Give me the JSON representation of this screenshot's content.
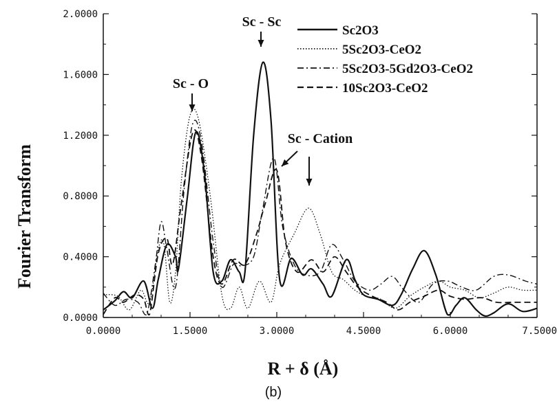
{
  "chart_data": {
    "type": "line",
    "xlabel": "R + δ  (Å)",
    "ylabel": "Fourier Transform",
    "panel_label": "(b)",
    "xlim": [
      0,
      7.5
    ],
    "ylim": [
      0,
      2
    ],
    "x_ticks": [
      "0.0000",
      "1.5000",
      "3.0000",
      "4.5000",
      "6.0000",
      "7.5000"
    ],
    "y_ticks": [
      "0.0000",
      "0.4000",
      "0.8000",
      "1.2000",
      "1.6000",
      "2.0000"
    ],
    "legend_position": "top-right",
    "annotations": [
      {
        "text": "Sc - Sc",
        "x": 2.76,
        "y": 1.68
      },
      {
        "text": "Sc - O",
        "x": 1.56,
        "y": 1.35
      },
      {
        "text": "Sc - Cation",
        "x": 2.95,
        "y": 1.05
      },
      {
        "text": "",
        "x": 3.55,
        "y": 0.88
      }
    ],
    "series": [
      {
        "name": "Sc2O3",
        "style": "solid",
        "points": [
          [
            0,
            0.05
          ],
          [
            0.2,
            0.11
          ],
          [
            0.35,
            0.17
          ],
          [
            0.5,
            0.13
          ],
          [
            0.7,
            0.24
          ],
          [
            0.85,
            0.06
          ],
          [
            0.95,
            0.25
          ],
          [
            1.1,
            0.48
          ],
          [
            1.25,
            0.4
          ],
          [
            1.3,
            0.32
          ],
          [
            1.45,
            0.78
          ],
          [
            1.6,
            1.22
          ],
          [
            1.75,
            0.95
          ],
          [
            1.9,
            0.3
          ],
          [
            2.05,
            0.24
          ],
          [
            2.2,
            0.38
          ],
          [
            2.35,
            0.3
          ],
          [
            2.45,
            0.3
          ],
          [
            2.6,
            1.2
          ],
          [
            2.76,
            1.68
          ],
          [
            2.9,
            1.3
          ],
          [
            3.05,
            0.25
          ],
          [
            3.25,
            0.39
          ],
          [
            3.45,
            0.28
          ],
          [
            3.6,
            0.32
          ],
          [
            3.8,
            0.22
          ],
          [
            3.95,
            0.14
          ],
          [
            4.2,
            0.38
          ],
          [
            4.35,
            0.25
          ],
          [
            4.5,
            0.15
          ],
          [
            4.75,
            0.12
          ],
          [
            5.0,
            0.08
          ],
          [
            5.15,
            0.15
          ],
          [
            5.35,
            0.32
          ],
          [
            5.55,
            0.44
          ],
          [
            5.75,
            0.28
          ],
          [
            5.95,
            0.02
          ],
          [
            6.1,
            0.08
          ],
          [
            6.25,
            0.13
          ],
          [
            6.45,
            0.05
          ],
          [
            6.6,
            0.01
          ],
          [
            6.75,
            0.03
          ],
          [
            7.0,
            0.09
          ],
          [
            7.25,
            0.04
          ],
          [
            7.5,
            0.06
          ]
        ]
      },
      {
        "name": "5Sc2O3-CeO2",
        "style": "dotted",
        "points": [
          [
            0,
            0.15
          ],
          [
            0.25,
            0.14
          ],
          [
            0.45,
            0.05
          ],
          [
            0.65,
            0.18
          ],
          [
            0.8,
            0.1
          ],
          [
            0.95,
            0.45
          ],
          [
            1.05,
            0.48
          ],
          [
            1.15,
            0.1
          ],
          [
            1.25,
            0.3
          ],
          [
            1.35,
            0.9
          ],
          [
            1.5,
            1.33
          ],
          [
            1.65,
            1.3
          ],
          [
            1.85,
            0.8
          ],
          [
            2.05,
            0.15
          ],
          [
            2.2,
            0.06
          ],
          [
            2.35,
            0.2
          ],
          [
            2.5,
            0.06
          ],
          [
            2.7,
            0.24
          ],
          [
            2.9,
            0.1
          ],
          [
            3.05,
            0.35
          ],
          [
            3.3,
            0.55
          ],
          [
            3.55,
            0.72
          ],
          [
            3.75,
            0.55
          ],
          [
            3.95,
            0.3
          ],
          [
            4.15,
            0.25
          ],
          [
            4.35,
            0.18
          ],
          [
            4.55,
            0.14
          ],
          [
            4.8,
            0.12
          ],
          [
            5.05,
            0.06
          ],
          [
            5.3,
            0.14
          ],
          [
            5.55,
            0.2
          ],
          [
            5.8,
            0.24
          ],
          [
            6.0,
            0.2
          ],
          [
            6.25,
            0.18
          ],
          [
            6.5,
            0.13
          ],
          [
            6.75,
            0.16
          ],
          [
            7.0,
            0.2
          ],
          [
            7.25,
            0.18
          ],
          [
            7.5,
            0.18
          ]
        ]
      },
      {
        "name": "5Sc2O3-5Gd2O3-CeO2",
        "style": "dashdot",
        "points": [
          [
            0,
            0.16
          ],
          [
            0.2,
            0.08
          ],
          [
            0.4,
            0.12
          ],
          [
            0.6,
            0.1
          ],
          [
            0.75,
            0.02
          ],
          [
            0.9,
            0.35
          ],
          [
            1.0,
            0.63
          ],
          [
            1.1,
            0.45
          ],
          [
            1.25,
            0.2
          ],
          [
            1.4,
            0.85
          ],
          [
            1.55,
            1.28
          ],
          [
            1.7,
            1.15
          ],
          [
            1.9,
            0.5
          ],
          [
            2.05,
            0.2
          ],
          [
            2.25,
            0.35
          ],
          [
            2.4,
            0.34
          ],
          [
            2.6,
            0.4
          ],
          [
            2.75,
            0.7
          ],
          [
            2.95,
            1.05
          ],
          [
            3.1,
            0.6
          ],
          [
            3.3,
            0.35
          ],
          [
            3.5,
            0.28
          ],
          [
            3.75,
            0.3
          ],
          [
            3.95,
            0.48
          ],
          [
            4.15,
            0.38
          ],
          [
            4.35,
            0.24
          ],
          [
            4.6,
            0.18
          ],
          [
            4.8,
            0.22
          ],
          [
            5.0,
            0.27
          ],
          [
            5.2,
            0.18
          ],
          [
            5.45,
            0.1
          ],
          [
            5.7,
            0.22
          ],
          [
            5.95,
            0.24
          ],
          [
            6.2,
            0.2
          ],
          [
            6.45,
            0.18
          ],
          [
            6.75,
            0.27
          ],
          [
            7.0,
            0.28
          ],
          [
            7.3,
            0.24
          ],
          [
            7.5,
            0.22
          ]
        ]
      },
      {
        "name": "10Sc2O3-CeO2",
        "style": "dashed",
        "points": [
          [
            0,
            0.02
          ],
          [
            0.2,
            0.13
          ],
          [
            0.35,
            0.1
          ],
          [
            0.55,
            0.15
          ],
          [
            0.7,
            0.12
          ],
          [
            0.8,
            0.02
          ],
          [
            0.95,
            0.42
          ],
          [
            1.1,
            0.52
          ],
          [
            1.2,
            0.35
          ],
          [
            1.35,
            0.75
          ],
          [
            1.55,
            1.22
          ],
          [
            1.7,
            1.05
          ],
          [
            1.9,
            0.4
          ],
          [
            2.05,
            0.22
          ],
          [
            2.25,
            0.38
          ],
          [
            2.45,
            0.35
          ],
          [
            2.65,
            0.55
          ],
          [
            2.8,
            0.75
          ],
          [
            3.0,
            0.97
          ],
          [
            3.15,
            0.5
          ],
          [
            3.35,
            0.3
          ],
          [
            3.6,
            0.38
          ],
          [
            3.8,
            0.3
          ],
          [
            4.0,
            0.4
          ],
          [
            4.2,
            0.3
          ],
          [
            4.4,
            0.2
          ],
          [
            4.65,
            0.14
          ],
          [
            4.9,
            0.1
          ],
          [
            5.1,
            0.05
          ],
          [
            5.3,
            0.1
          ],
          [
            5.55,
            0.14
          ],
          [
            5.8,
            0.18
          ],
          [
            6.0,
            0.14
          ],
          [
            6.25,
            0.12
          ],
          [
            6.55,
            0.13
          ],
          [
            6.8,
            0.1
          ],
          [
            7.1,
            0.1
          ],
          [
            7.5,
            0.1
          ]
        ]
      }
    ]
  }
}
